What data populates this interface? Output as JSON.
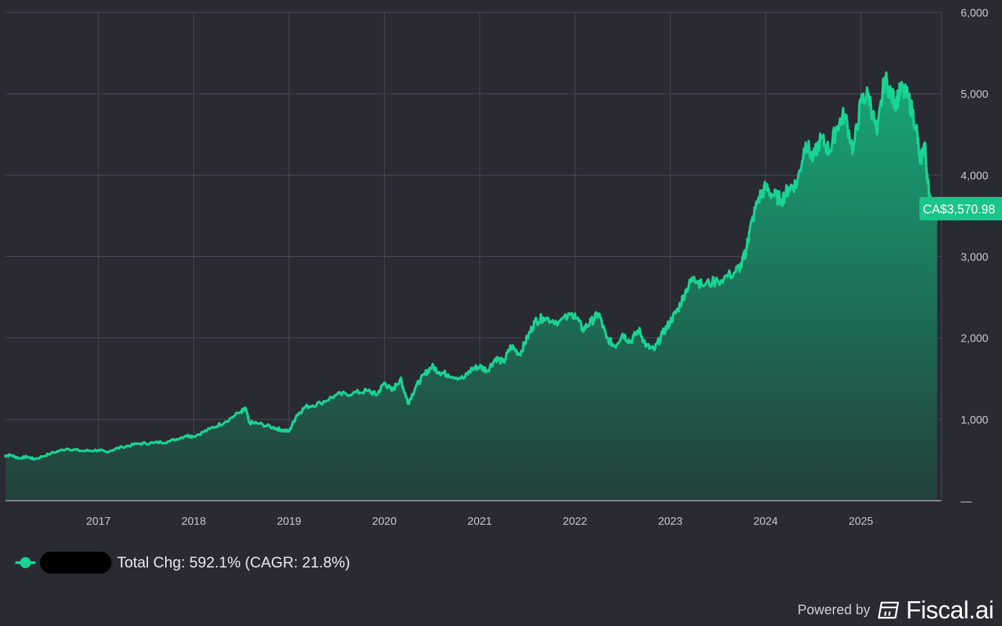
{
  "chart_data": {
    "type": "area",
    "x_ticks": [
      "2017",
      "2018",
      "2019",
      "2020",
      "2021",
      "2022",
      "2023",
      "2024",
      "2025"
    ],
    "y_ticks": [
      "—",
      "1,000",
      "2,000",
      "3,000",
      "4,000",
      "5,000",
      "6,000"
    ],
    "ylim": [
      0,
      6000
    ],
    "xlim": [
      2016.0,
      2025.8
    ],
    "grid": true,
    "y_axis_side": "right",
    "colors": {
      "line": "#19d392",
      "area_top": "#17a878",
      "area_bottom": "#233f3b",
      "background": "#2a2a33"
    },
    "series": [
      {
        "x": [
          2016.0,
          2016.08,
          2016.17,
          2016.25,
          2016.33,
          2016.5,
          2016.67,
          2016.83,
          2017.0,
          2017.08,
          2017.25,
          2017.42,
          2017.58,
          2017.75,
          2017.92,
          2018.0,
          2018.17,
          2018.33,
          2018.5,
          2018.55,
          2018.58,
          2018.67,
          2018.83,
          2018.92,
          2019.0,
          2019.08,
          2019.17,
          2019.33,
          2019.5,
          2019.67,
          2019.83,
          2019.92,
          2020.0,
          2020.08,
          2020.17,
          2020.2,
          2020.25,
          2020.33,
          2020.42,
          2020.5,
          2020.58,
          2020.67,
          2020.83,
          2020.92,
          2021.0,
          2021.08,
          2021.17,
          2021.25,
          2021.33,
          2021.42,
          2021.5,
          2021.58,
          2021.67,
          2021.83,
          2022.0,
          2022.08,
          2022.17,
          2022.25,
          2022.33,
          2022.42,
          2022.5,
          2022.58,
          2022.67,
          2022.75,
          2022.83,
          2022.92,
          2023.0,
          2023.08,
          2023.17,
          2023.25,
          2023.33,
          2023.5,
          2023.67,
          2023.75,
          2023.8,
          2023.83,
          2023.92,
          2024.0,
          2024.08,
          2024.17,
          2024.25,
          2024.33,
          2024.42,
          2024.5,
          2024.58,
          2024.67,
          2024.75,
          2024.83,
          2024.92,
          2025.0,
          2025.08,
          2025.17,
          2025.25,
          2025.33,
          2025.37,
          2025.42,
          2025.5,
          2025.58,
          2025.62,
          2025.67,
          2025.7,
          2025.75,
          2025.8
        ],
        "y": [
          550,
          560,
          520,
          540,
          510,
          580,
          640,
          610,
          620,
          600,
          660,
          700,
          710,
          730,
          800,
          790,
          880,
          970,
          1100,
          1120,
          960,
          950,
          900,
          870,
          850,
          1050,
          1150,
          1200,
          1300,
          1320,
          1350,
          1300,
          1450,
          1350,
          1500,
          1380,
          1200,
          1400,
          1550,
          1650,
          1580,
          1550,
          1500,
          1620,
          1650,
          1600,
          1750,
          1700,
          1900,
          1800,
          2000,
          2200,
          2250,
          2200,
          2300,
          2100,
          2200,
          2300,
          2000,
          1900,
          2050,
          1950,
          2100,
          1900,
          1850,
          2050,
          2200,
          2350,
          2600,
          2750,
          2650,
          2700,
          2800,
          2900,
          3100,
          3300,
          3700,
          3850,
          3750,
          3700,
          3850,
          3900,
          4400,
          4200,
          4450,
          4300,
          4600,
          4750,
          4300,
          4900,
          5000,
          4500,
          5200,
          4950,
          4900,
          5050,
          4950,
          4600,
          4150,
          4400,
          3900,
          3600,
          3570.98
        ]
      }
    ]
  },
  "price_badge": {
    "text": "CA$3,570.98",
    "color": "#19c588"
  },
  "legend": {
    "text": "Total Chg: 592.1% (CAGR: 21.8%)",
    "marker_icon": "line-dot-icon"
  },
  "branding": {
    "powered_by": "Powered by",
    "name": "Fiscal.ai",
    "logo_icon": "fiscal-logo-icon"
  }
}
